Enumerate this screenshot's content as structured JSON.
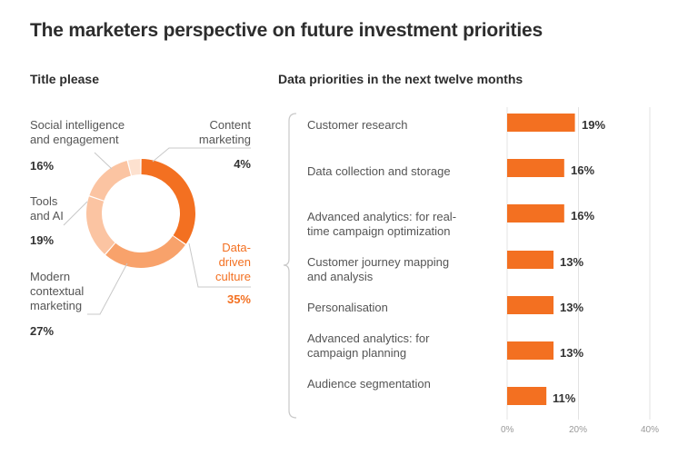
{
  "page_title": "The marketers perspective on future investment priorities",
  "left_title": "Title please",
  "right_title": "Data priorities in the next twelve months",
  "colors": {
    "accent": "#f37021",
    "donut_light": "#f8a26b",
    "donut_lighter": "#fbc4a2",
    "donut_lightest": "#fde1cf",
    "bar_fill": "#f37021",
    "label_orange": "#f37021"
  },
  "chart_data": [
    {
      "type": "pie",
      "title": "Title please",
      "slices": [
        {
          "label": "Data-driven culture",
          "label_lines": [
            "Data-",
            "driven",
            "culture"
          ],
          "value": 35,
          "display": "35%"
        },
        {
          "label": "Modern contextual marketing",
          "label_lines": [
            "Modern",
            "contextual",
            "marketing"
          ],
          "value": 27,
          "display": "27%"
        },
        {
          "label": "Tools and AI",
          "label_lines": [
            "Tools",
            "and AI"
          ],
          "value": 19,
          "display": "19%"
        },
        {
          "label": "Social intelligence and engagement",
          "label_lines": [
            "Social intelligence",
            "and engagement"
          ],
          "value": 16,
          "display": "16%"
        },
        {
          "label": "Content marketing",
          "label_lines": [
            "Content",
            "marketing"
          ],
          "value": 4,
          "display": "4%"
        }
      ]
    },
    {
      "type": "bar",
      "orientation": "horizontal",
      "title": "Data priorities in the next twelve months",
      "categories": [
        "Customer research",
        "Data collection and storage",
        "Advanced analytics: for real-time campaign optimization",
        "Customer journey mapping and analysis",
        "Personalisation",
        "Advanced analytics: for campaign planning",
        "Audience segmentation"
      ],
      "category_lines": [
        [
          "Customer research"
        ],
        [
          "Data collection and storage"
        ],
        [
          "Advanced analytics: for real-",
          "time campaign optimization"
        ],
        [
          "Customer journey mapping",
          "and analysis"
        ],
        [
          "Personalisation"
        ],
        [
          "Advanced analytics: for",
          "campaign planning"
        ],
        [
          "Audience segmentation"
        ]
      ],
      "values": [
        19,
        16,
        16,
        13,
        13,
        13,
        11
      ],
      "value_labels": [
        "19%",
        "16%",
        "16%",
        "13%",
        "13%",
        "13%",
        "11%"
      ],
      "xlim": [
        0,
        40
      ],
      "xticks": [
        "0%",
        "20%",
        "40%"
      ],
      "grid": true
    }
  ]
}
